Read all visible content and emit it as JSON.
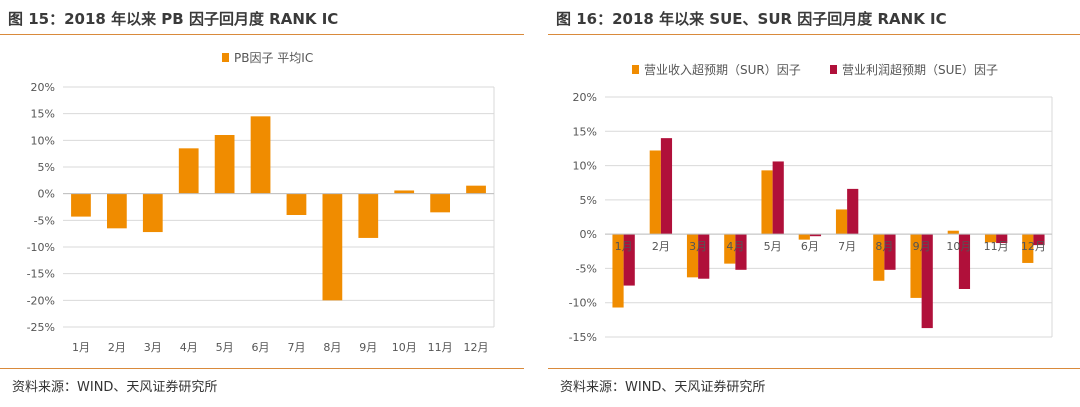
{
  "left": {
    "title": "图 15：2018 年以来 PB 因子回月度 RANK IC",
    "source": "资料来源：WIND、天风证券研究所",
    "chart_data": {
      "type": "bar",
      "categories": [
        "1月",
        "2月",
        "3月",
        "4月",
        "5月",
        "6月",
        "7月",
        "8月",
        "9月",
        "10月",
        "11月",
        "12月"
      ],
      "series": [
        {
          "name": "PB因子 平均IC",
          "color": "#f08c00",
          "values": [
            -4.3,
            -6.5,
            -7.2,
            8.5,
            11.0,
            14.5,
            -4.0,
            -20.0,
            -8.3,
            0.6,
            -3.5,
            1.5
          ]
        }
      ],
      "ylim": [
        -25,
        20
      ],
      "yticks": [
        20,
        15,
        10,
        5,
        0,
        -5,
        -10,
        -15,
        -20,
        -25
      ],
      "ytick_labels": [
        "20%",
        "15%",
        "10%",
        "5%",
        "0%",
        "-5%",
        "-10%",
        "-15%",
        "-20%",
        "-25%"
      ],
      "grid": true,
      "legend": "top-center"
    }
  },
  "right": {
    "title": "图 16：2018 年以来 SUE、SUR 因子回月度 RANK IC",
    "source": "资料来源：WIND、天风证券研究所",
    "chart_data": {
      "type": "bar",
      "categories": [
        "1月",
        "2月",
        "3月",
        "4月",
        "5月",
        "6月",
        "7月",
        "8月",
        "9月",
        "10月",
        "11月",
        "12月"
      ],
      "series": [
        {
          "name": "营业收入超预期（SUR）因子",
          "color": "#f08c00",
          "values": [
            -10.7,
            12.2,
            -6.3,
            -4.3,
            9.3,
            -0.8,
            3.6,
            -6.8,
            -9.3,
            0.5,
            -1.2,
            -4.2
          ]
        },
        {
          "name": "营业利润超预期（SUE）因子",
          "color": "#b0103a",
          "values": [
            -7.5,
            14.0,
            -6.5,
            -5.2,
            10.6,
            -0.3,
            6.6,
            -5.2,
            -13.7,
            -8.0,
            -1.3,
            -1.6
          ]
        }
      ],
      "ylim": [
        -15,
        20
      ],
      "yticks": [
        20,
        15,
        10,
        5,
        0,
        -5,
        -10,
        -15
      ],
      "ytick_labels": [
        "20%",
        "15%",
        "10%",
        "5%",
        "0%",
        "-5%",
        "-10%",
        "-15%"
      ],
      "grid": true,
      "legend": "top-center"
    }
  }
}
